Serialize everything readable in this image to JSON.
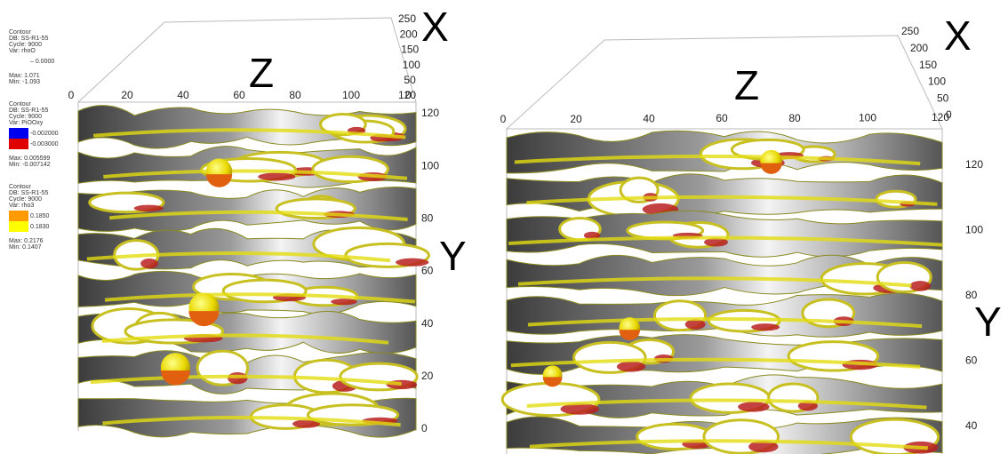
{
  "left_panel": {
    "legend": [
      {
        "title": "Contour",
        "db": "DB: SS-R1-55",
        "cycle": "Cycle: 9000",
        "var": "Var: rhoO",
        "levels": [
          "– 0.0000"
        ],
        "max": "Max: 1.071",
        "min": "Min: -1.093"
      },
      {
        "title": "Contour",
        "db": "DB: SS-R1-55",
        "cycle": "Cycle: 9000",
        "var": "Var: PiOOxy",
        "levels": [
          "-0.002000",
          "-0.003000"
        ],
        "max": "Max: 0.005599",
        "min": "Min: -0.007142"
      },
      {
        "title": "Contour",
        "db": "DB: SS-R1-55",
        "cycle": "Cycle: 9000",
        "var": "Var: rho3",
        "levels": [
          "0.1850",
          "0.1830"
        ],
        "max": "Max: 0.2176",
        "min": "Min: 0.1407"
      }
    ],
    "axes": {
      "top_ticks": [
        "0",
        "20",
        "40",
        "60",
        "80",
        "100",
        "120"
      ],
      "depth_ticks": [
        "250",
        "200",
        "150",
        "100",
        "50",
        "0"
      ],
      "side_ticks": [
        "120",
        "100",
        "80",
        "60",
        "40",
        "20",
        "0"
      ],
      "labels": {
        "x": "X",
        "y": "Y",
        "z": "Z"
      }
    }
  },
  "right_panel": {
    "axes": {
      "top_ticks": [
        "0",
        "20",
        "40",
        "60",
        "80",
        "100",
        "120"
      ],
      "depth_ticks": [
        "250",
        "200",
        "150",
        "100",
        "50",
        "0"
      ],
      "side_ticks": [
        "120",
        "100",
        "80",
        "60",
        "40"
      ],
      "labels": {
        "x": "X",
        "y": "Y",
        "z": "Z"
      }
    }
  }
}
